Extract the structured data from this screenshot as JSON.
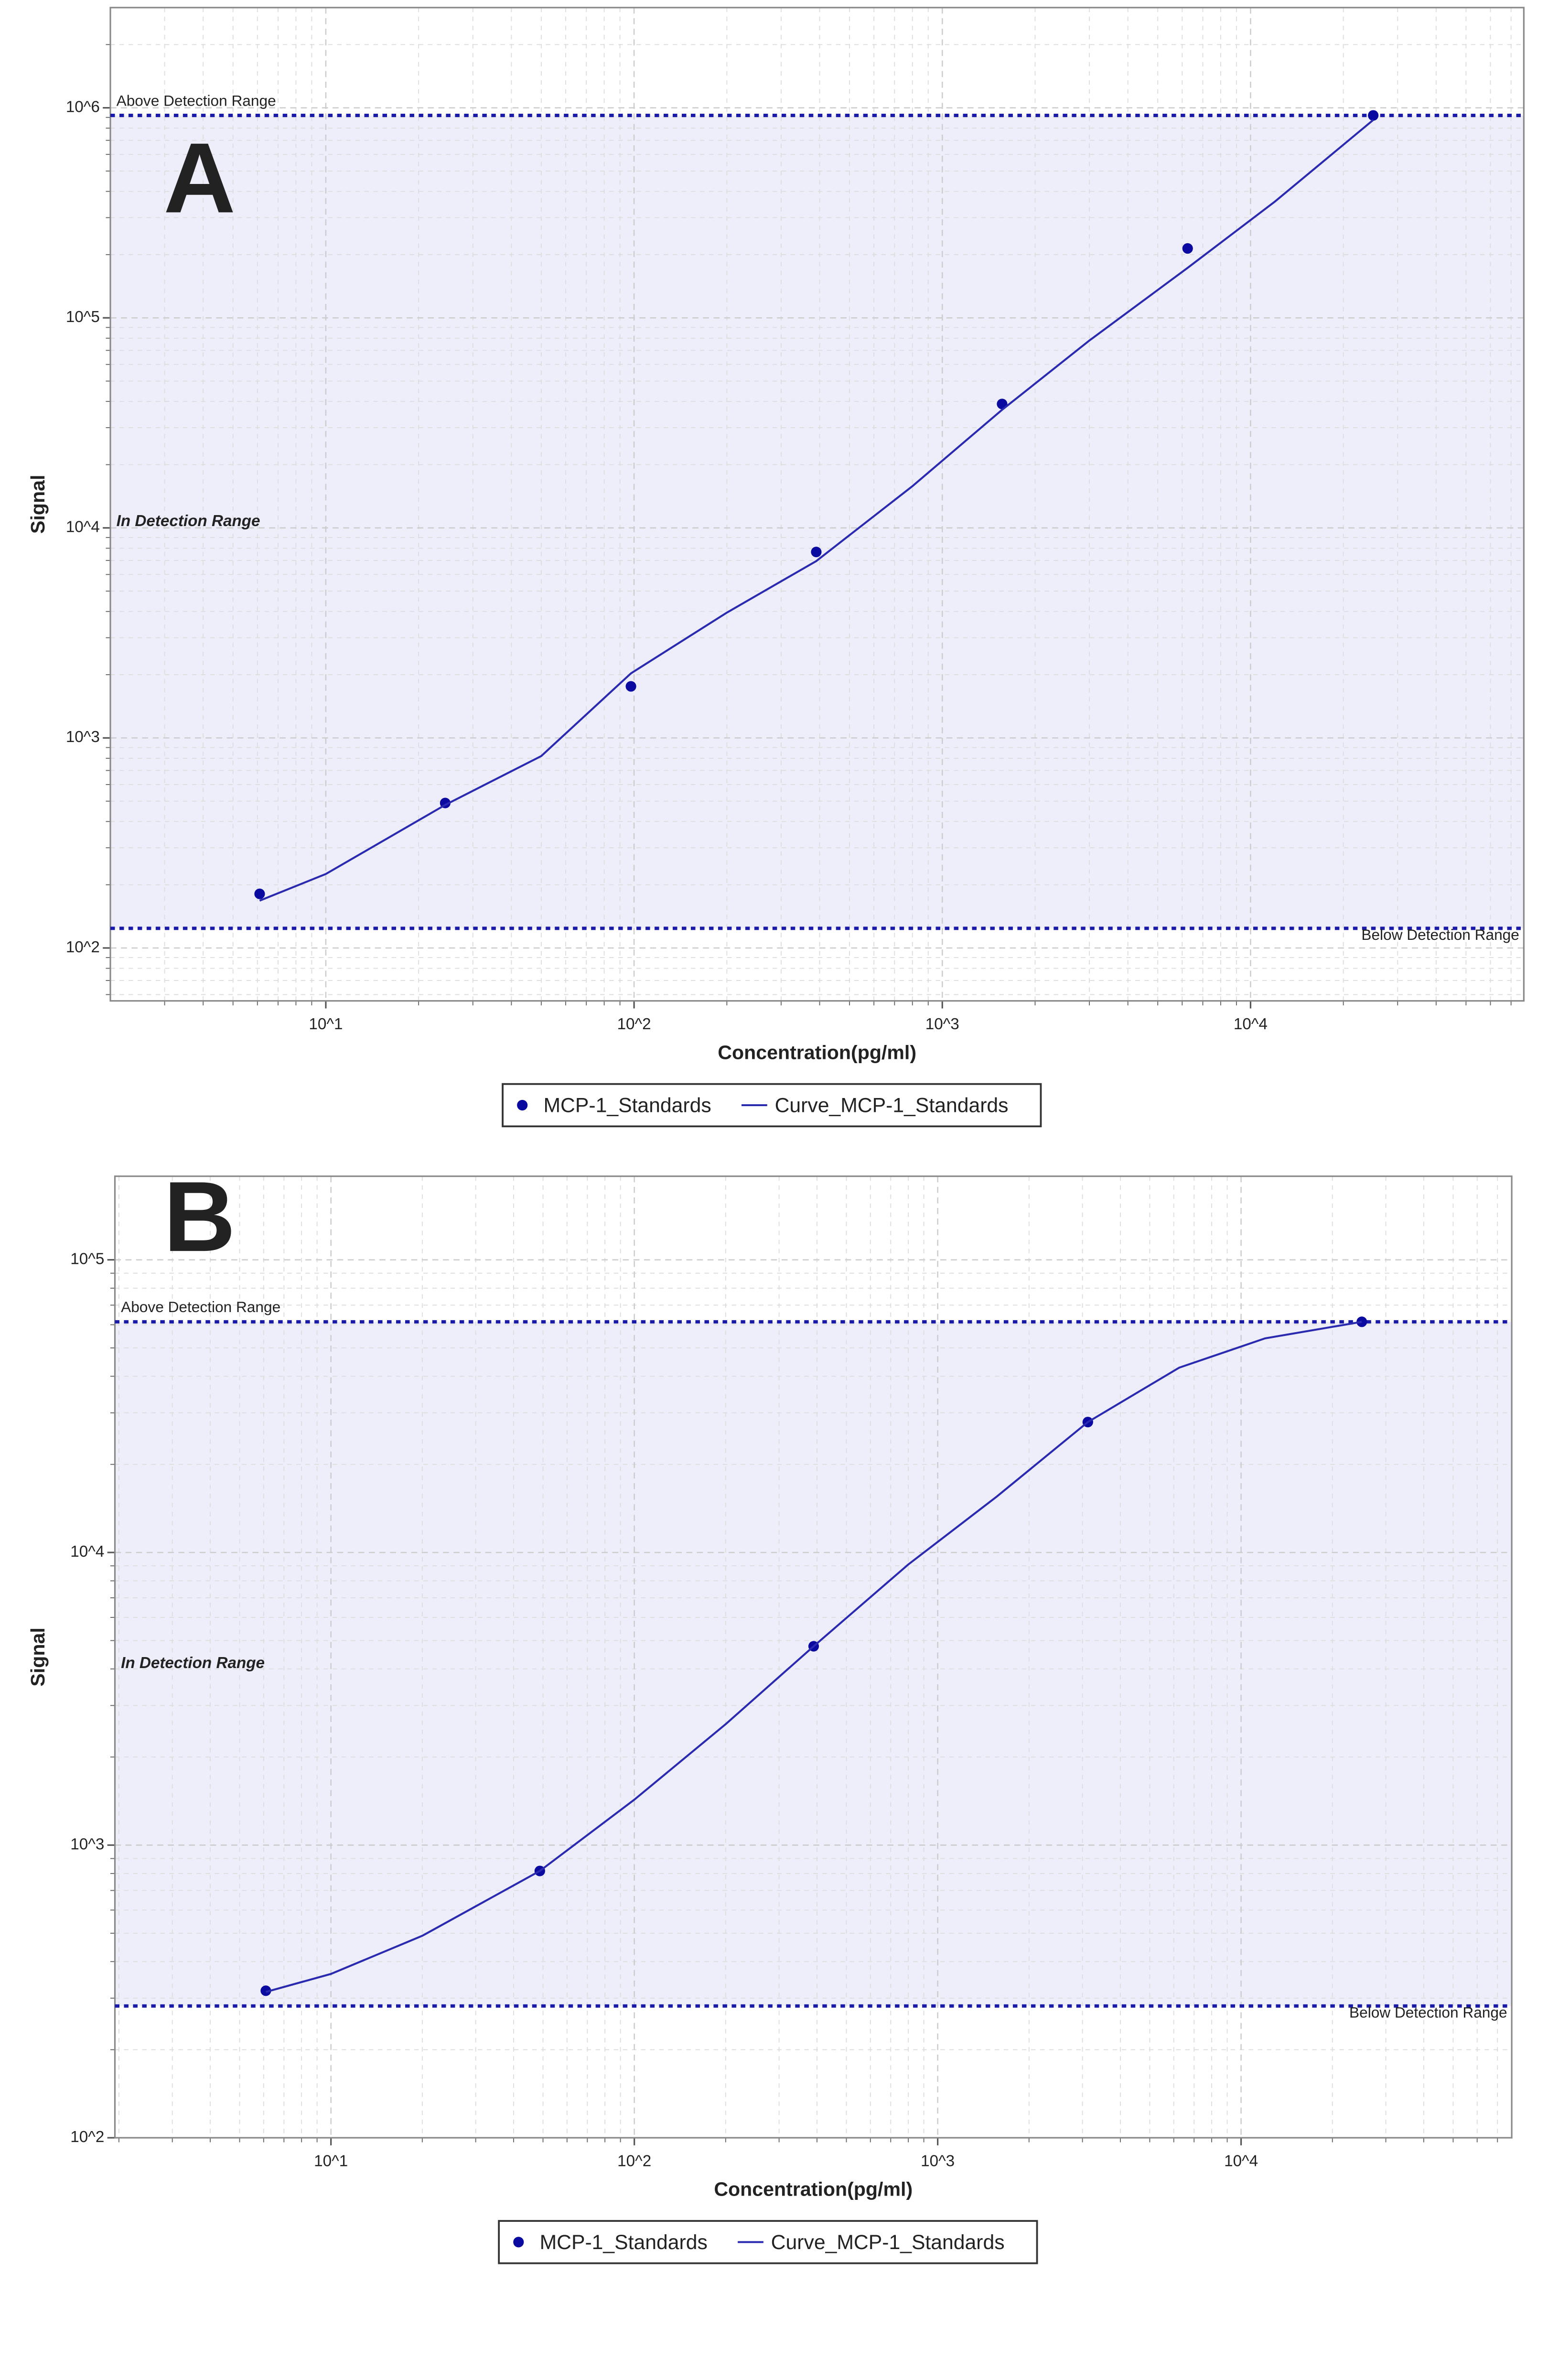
{
  "chart_data": [
    {
      "type": "scatter",
      "panel": "A",
      "x_label": "Concentration(pg/ml)",
      "y_label": "Signal",
      "log_x": true,
      "log_y": true,
      "grid": true,
      "minor_grid": true,
      "xlim": [
        2,
        77000
      ],
      "ylim": [
        56,
        3000000
      ],
      "xticks": [
        {
          "value": 10,
          "label": "10^1"
        },
        {
          "value": 100,
          "label": "10^2"
        },
        {
          "value": 1000,
          "label": "10^3"
        },
        {
          "value": 10000,
          "label": "10^4"
        }
      ],
      "yticks": [
        {
          "value": 100,
          "label": "10^2"
        },
        {
          "value": 1000,
          "label": "10^3"
        },
        {
          "value": 10000,
          "label": "10^4"
        },
        {
          "value": 100000,
          "label": "10^5"
        },
        {
          "value": 1000000,
          "label": "10^6"
        }
      ],
      "detection": {
        "upper": 920000,
        "lower": 124,
        "upper_label": "Above Detection Range",
        "in_label": "In Detection Range",
        "lower_label": "Below Detection Range",
        "color": "#1a1aa8",
        "fill": "#eeeefb"
      },
      "series": [
        {
          "name": "MCP-1_Standards",
          "style": "markers",
          "color": "#0a0aa0",
          "x": [
            6.1,
            24.4,
            97.7,
            390,
            1563,
            6250,
            25000
          ],
          "values": [
            181,
            490,
            1760,
            7680,
            38900,
            214000,
            920000
          ]
        },
        {
          "name": "Curve_MCP-1_Standards",
          "style": "line",
          "color": "#2a2ab0",
          "x": [
            6.1,
            10,
            24.4,
            50,
            97.7,
            200,
            390,
            800,
            1563,
            3000,
            6250,
            12000,
            25000
          ],
          "values": [
            168,
            225,
            480,
            820,
            2030,
            3950,
            6950,
            15800,
            36500,
            78000,
            173000,
            358000,
            875000
          ]
        }
      ]
    },
    {
      "type": "scatter",
      "panel": "B",
      "x_label": "Concentration(pg/ml)",
      "y_label": "Signal",
      "log_x": true,
      "log_y": true,
      "grid": true,
      "minor_grid": true,
      "xlim": [
        1.94,
        78000
      ],
      "ylim": [
        100,
        193000
      ],
      "xticks": [
        {
          "value": 10,
          "label": "10^1"
        },
        {
          "value": 100,
          "label": "10^2"
        },
        {
          "value": 1000,
          "label": "10^3"
        },
        {
          "value": 10000,
          "label": "10^4"
        }
      ],
      "yticks": [
        {
          "value": 100,
          "label": "10^2"
        },
        {
          "value": 1000,
          "label": "10^3"
        },
        {
          "value": 10000,
          "label": "10^4"
        },
        {
          "value": 100000,
          "label": "10^5"
        }
      ],
      "detection": {
        "upper": 61400,
        "lower": 282,
        "upper_label": "Above Detection Range",
        "in_label": "In Detection Range",
        "lower_label": "Below Detection Range",
        "color": "#1a1aa8",
        "fill": "#eeeefb"
      },
      "series": [
        {
          "name": "MCP-1_Standards",
          "style": "markers",
          "color": "#0a0aa0",
          "x": [
            6.1,
            48.8,
            390,
            3125,
            25000
          ],
          "values": [
            318,
            816,
            4780,
            27900,
            61400
          ]
        },
        {
          "name": "Curve_MCP-1_Standards",
          "style": "line",
          "color": "#2a2ab0",
          "x": [
            6.1,
            10,
            20,
            48.8,
            100,
            200,
            390,
            800,
            1563,
            3125,
            6250,
            12000,
            25000
          ],
          "values": [
            315,
            363,
            490,
            816,
            1430,
            2590,
            4780,
            9100,
            15500,
            27900,
            42800,
            53900,
            61400
          ]
        }
      ]
    }
  ]
}
